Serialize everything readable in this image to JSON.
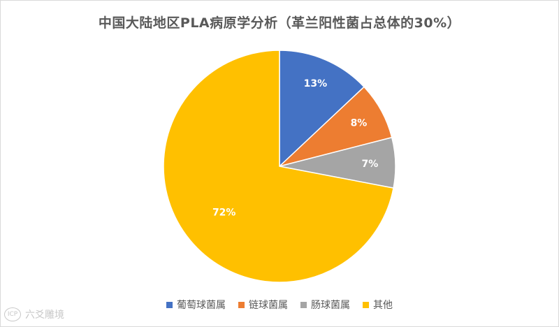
{
  "chart_data": {
    "type": "pie",
    "title": "中国大陆地区PLA病原学分析（革兰阳性菌占总体的30%）",
    "categories": [
      "葡萄球菌属",
      "链球菌属",
      "肠球菌属",
      "其他"
    ],
    "values": [
      13,
      8,
      7,
      72
    ],
    "data_labels": [
      "13%",
      "8%",
      "7%",
      "72%"
    ],
    "colors": [
      "#4472c4",
      "#ed7d31",
      "#a5a5a5",
      "#ffc000"
    ],
    "legend_position": "bottom",
    "start_angle": "12 o'clock, clockwise"
  },
  "watermark": {
    "logo_text": "ICP",
    "text": "六爻雕境"
  }
}
